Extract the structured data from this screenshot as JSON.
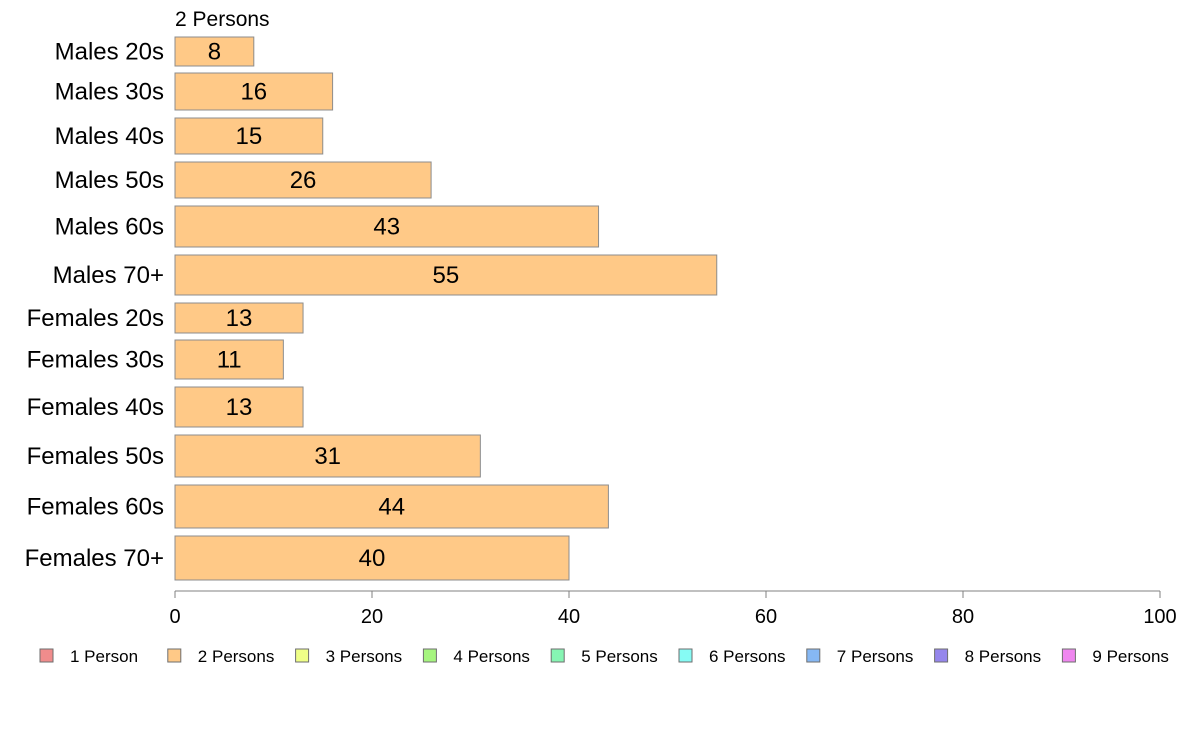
{
  "chart_data": {
    "type": "bar",
    "orientation": "horizontal",
    "title": "2 Persons",
    "categories": [
      "Males 20s",
      "Males 30s",
      "Males 40s",
      "Males 50s",
      "Males 60s",
      "Males 70+",
      "Females 20s",
      "Females 30s",
      "Females 40s",
      "Females 50s",
      "Females 60s",
      "Females 70+"
    ],
    "series": [
      {
        "name": "2 Persons",
        "color": "#ffc987",
        "values": [
          8,
          16,
          15,
          26,
          43,
          55,
          13,
          11,
          13,
          31,
          44,
          40
        ]
      }
    ],
    "xlim": [
      0,
      100
    ],
    "xticks": [
      0,
      20,
      40,
      60,
      80,
      100
    ],
    "grid": false,
    "legend_position": "bottom",
    "legend": [
      {
        "label": "1 Person",
        "color": "#f08c8c"
      },
      {
        "label": "2 Persons",
        "color": "#ffc987"
      },
      {
        "label": "3 Persons",
        "color": "#efff87"
      },
      {
        "label": "4 Persons",
        "color": "#a6f57f"
      },
      {
        "label": "5 Persons",
        "color": "#86f5b3"
      },
      {
        "label": "6 Persons",
        "color": "#86fbf4"
      },
      {
        "label": "7 Persons",
        "color": "#86b8f4"
      },
      {
        "label": "8 Persons",
        "color": "#9586ec"
      },
      {
        "label": "9 Persons",
        "color": "#ef86ef"
      }
    ]
  }
}
